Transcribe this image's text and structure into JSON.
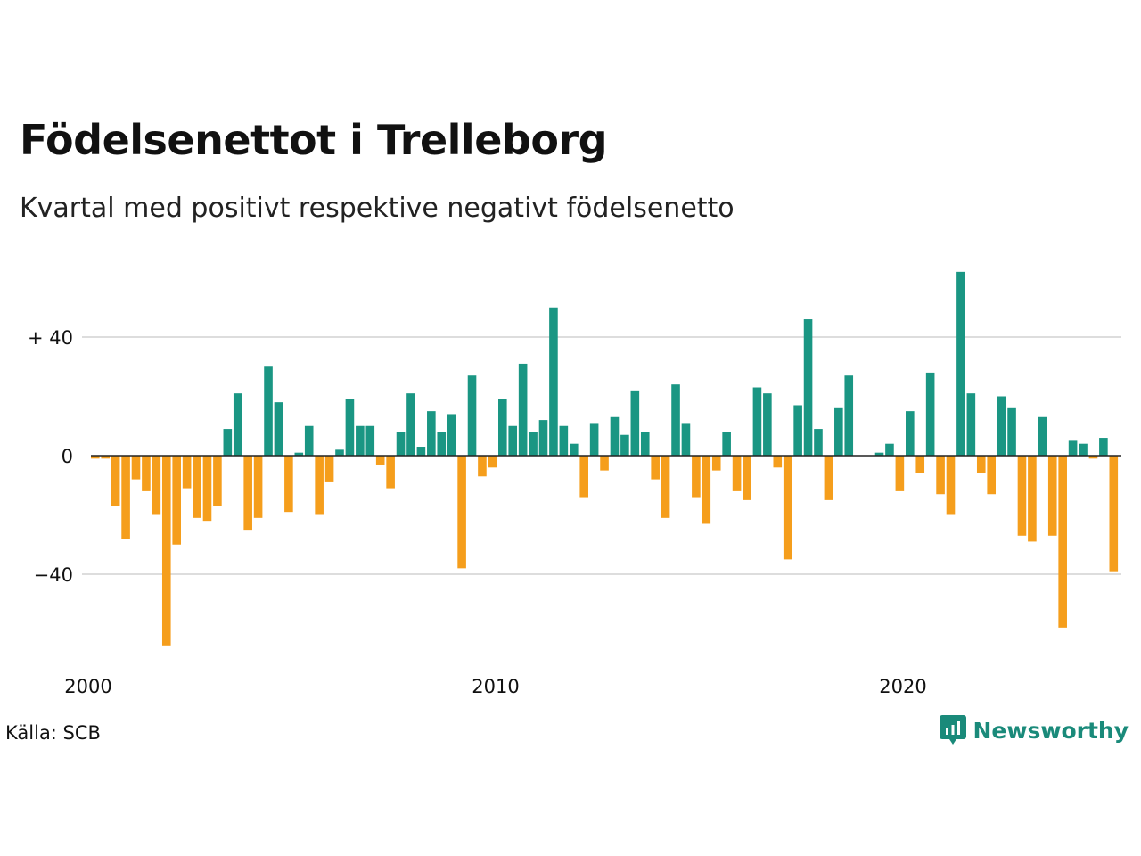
{
  "header": {
    "title": "Födelsenettot i Trelleborg",
    "subtitle": "Kvartal med positivt respektive negativt födelsenetto"
  },
  "footer": {
    "source": "Källa: SCB",
    "brand_name": "Newsworthy",
    "brand_icon": "newsworthy-logo-icon"
  },
  "colors": {
    "positive": "#1a9683",
    "negative": "#f59e1c",
    "grid": "#dddddd",
    "brand": "#1a8a7a"
  },
  "chart_data": {
    "type": "bar",
    "title": "Födelsenettot i Trelleborg",
    "subtitle": "Kvartal med positivt respektive negativt födelsenetto",
    "xlabel": "",
    "ylabel": "",
    "x_start": 2000,
    "periods_per_year": 4,
    "ylim": [
      -67,
      63
    ],
    "yticks": [
      40,
      0,
      -40
    ],
    "ytick_labels": [
      "+ 40",
      "0",
      "−40"
    ],
    "xticks": [
      2000,
      2010,
      2020
    ],
    "xtick_labels": [
      "2000",
      "2010",
      "2020"
    ],
    "grid": true,
    "values": [
      -1,
      -1,
      -17,
      -28,
      -8,
      -12,
      -20,
      -64,
      -30,
      -11,
      -21,
      -22,
      -17,
      9,
      21,
      -25,
      -21,
      30,
      18,
      -19,
      1,
      10,
      -20,
      -9,
      2,
      19,
      10,
      10,
      -3,
      -11,
      8,
      21,
      3,
      15,
      8,
      14,
      -38,
      27,
      -7,
      -4,
      19,
      10,
      31,
      8,
      12,
      50,
      10,
      4,
      -14,
      11,
      -5,
      13,
      7,
      22,
      8,
      -8,
      -21,
      24,
      11,
      -14,
      -23,
      -5,
      8,
      -12,
      -15,
      23,
      21,
      -4,
      -35,
      17,
      46,
      9,
      -15,
      16,
      27,
      0,
      0,
      1,
      4,
      -12,
      15,
      -6,
      28,
      -13,
      -20,
      62,
      21,
      -6,
      -13,
      20,
      16,
      -27,
      -29,
      13,
      -27,
      -58,
      5,
      4,
      -1,
      6,
      -39
    ]
  }
}
